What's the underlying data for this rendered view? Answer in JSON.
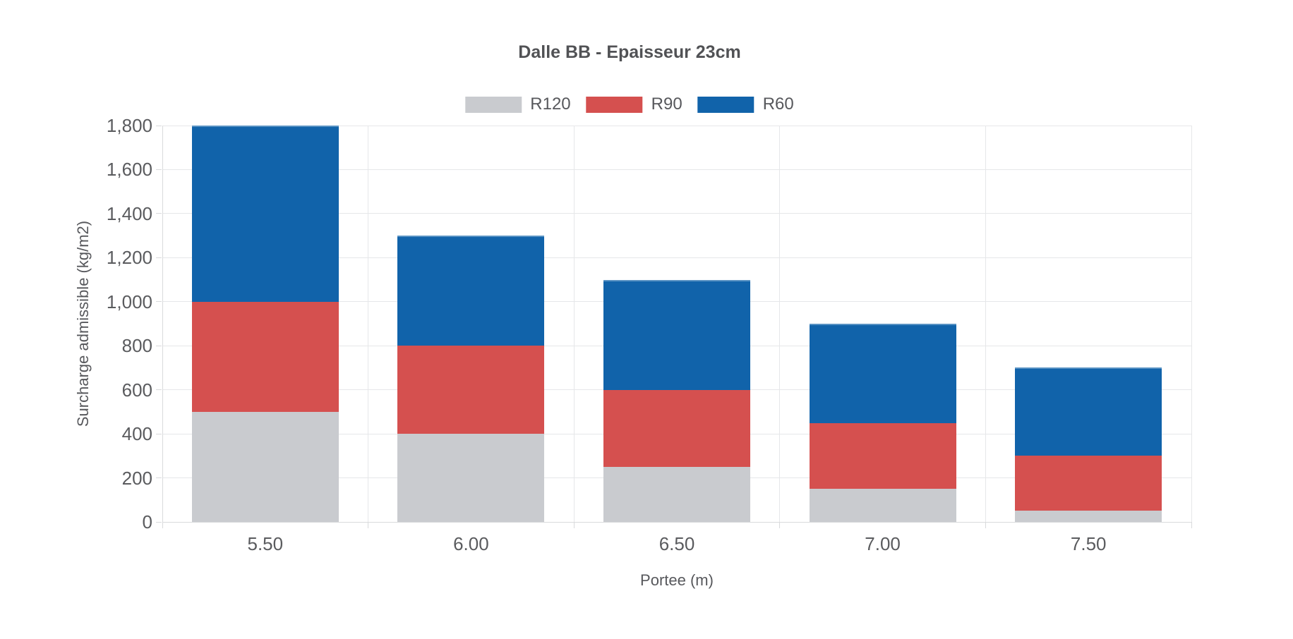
{
  "chart_data": {
    "type": "bar",
    "stacked": true,
    "title": "Dalle BB - Epaisseur 23cm",
    "xlabel": "Portee (m)",
    "ylabel": "Surcharge admissible (kg/m2)",
    "categories": [
      "5.50",
      "6.00",
      "6.50",
      "7.00",
      "7.50"
    ],
    "series": [
      {
        "name": "R120",
        "color": "#C9CBCF",
        "values": [
          500,
          400,
          250,
          150,
          50
        ]
      },
      {
        "name": "R90",
        "color": "#D5504F",
        "values": [
          500,
          400,
          350,
          300,
          250
        ]
      },
      {
        "name": "R60",
        "color": "#1163AA",
        "values": [
          800,
          500,
          500,
          450,
          400
        ]
      }
    ],
    "stack_totals": [
      1800,
      1300,
      1100,
      900,
      700
    ],
    "cumulative_tops": {
      "R120": [
        500,
        400,
        250,
        150,
        50
      ],
      "R90": [
        1000,
        800,
        600,
        450,
        300
      ],
      "R60": [
        1800,
        1300,
        1100,
        900,
        700
      ]
    },
    "ylim": [
      0,
      1800
    ],
    "ytick_step": 200,
    "yticks": [
      "0",
      "200",
      "400",
      "600",
      "800",
      "1,000",
      "1,200",
      "1,400",
      "1,600",
      "1,800"
    ],
    "legend": {
      "position": "top",
      "items": [
        "R120",
        "R90",
        "R60"
      ]
    },
    "grid": true
  }
}
